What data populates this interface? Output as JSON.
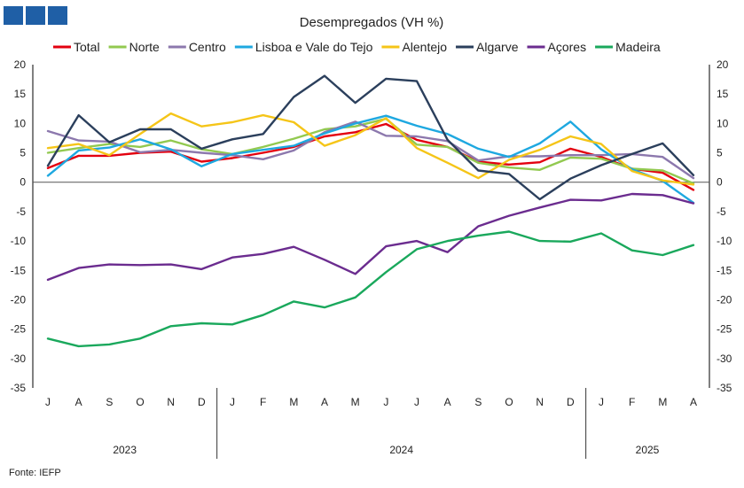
{
  "header": {
    "logo_blocks": 3,
    "logo_color": "#1f5fa6"
  },
  "footer": {
    "source": "Fonte: IEFP"
  },
  "chart_data": {
    "type": "line",
    "title": "Desempregados (VH %)",
    "ylim": [
      -35,
      20
    ],
    "yticks": [
      -35,
      -30,
      -25,
      -20,
      -15,
      -10,
      -5,
      0,
      5,
      10,
      15,
      20
    ],
    "categories": [
      "J",
      "A",
      "S",
      "O",
      "N",
      "D",
      "J",
      "F",
      "M",
      "A",
      "M",
      "J",
      "J",
      "A",
      "S",
      "O",
      "N",
      "D",
      "J",
      "F",
      "M",
      "A"
    ],
    "years": [
      {
        "label": "2023",
        "start": 0,
        "end": 5
      },
      {
        "label": "2024",
        "start": 6,
        "end": 17
      },
      {
        "label": "2025",
        "start": 18,
        "end": 21
      }
    ],
    "series": [
      {
        "name": "Total",
        "color": "#e3000f",
        "values": [
          2.4,
          4.5,
          4.5,
          5.0,
          5.2,
          3.5,
          4.1,
          5.0,
          6.0,
          7.8,
          8.5,
          9.9,
          7.2,
          6.0,
          3.5,
          3.0,
          3.4,
          5.7,
          4.3,
          2.3,
          1.6,
          -1.3
        ]
      },
      {
        "name": "Norte",
        "color": "#92c950",
        "values": [
          5.0,
          5.8,
          6.5,
          6.0,
          7.1,
          5.6,
          4.8,
          6.0,
          7.4,
          9.0,
          9.5,
          10.8,
          6.4,
          6.0,
          3.3,
          2.5,
          2.1,
          4.2,
          4.0,
          2.3,
          2.0,
          -0.2
        ]
      },
      {
        "name": "Centro",
        "color": "#8c78ad",
        "values": [
          8.7,
          7.1,
          6.9,
          5.1,
          5.5,
          5.0,
          4.6,
          3.9,
          5.4,
          8.5,
          10.3,
          7.9,
          7.8,
          7.0,
          3.7,
          4.4,
          4.4,
          4.6,
          4.6,
          4.8,
          4.3,
          0.7
        ]
      },
      {
        "name": "Lisboa e Vale do Tejo",
        "color": "#1ea8e0",
        "values": [
          1.1,
          5.4,
          5.9,
          7.3,
          5.6,
          2.7,
          4.8,
          5.5,
          6.2,
          8.3,
          10.0,
          11.3,
          9.6,
          8.2,
          5.7,
          4.3,
          6.6,
          10.3,
          5.6,
          2.2,
          0.2,
          -3.5
        ]
      },
      {
        "name": "Alentejo",
        "color": "#f5c518",
        "values": [
          5.8,
          6.5,
          4.6,
          8.2,
          11.7,
          9.5,
          10.2,
          11.4,
          10.2,
          6.2,
          8.0,
          10.9,
          5.8,
          3.3,
          0.7,
          3.8,
          5.5,
          7.8,
          6.5,
          1.9,
          0.3,
          -0.4
        ]
      },
      {
        "name": "Algarve",
        "color": "#2b3f5c",
        "values": [
          2.8,
          11.4,
          6.8,
          9.0,
          9.0,
          5.7,
          7.3,
          8.2,
          14.5,
          18.1,
          13.5,
          17.6,
          17.2,
          7.2,
          2.0,
          1.4,
          -2.9,
          0.6,
          2.9,
          4.8,
          6.6,
          1.2
        ]
      },
      {
        "name": "Açores",
        "color": "#6b2c8f",
        "values": [
          -16.6,
          -14.6,
          -14.0,
          -14.1,
          -14.0,
          -14.8,
          -12.8,
          -12.2,
          -11.0,
          -13.2,
          -15.6,
          -10.9,
          -10.0,
          -11.9,
          -7.5,
          -5.7,
          -4.3,
          -3.0,
          -3.1,
          -2.0,
          -2.2,
          -3.6
        ]
      },
      {
        "name": "Madeira",
        "color": "#1aa85c",
        "values": [
          -26.6,
          -27.9,
          -27.6,
          -26.6,
          -24.5,
          -24.0,
          -24.2,
          -22.6,
          -20.3,
          -21.3,
          -19.6,
          -15.3,
          -11.4,
          -10.0,
          -9.1,
          -8.4,
          -10.0,
          -10.1,
          -8.7,
          -11.6,
          -12.4,
          -10.7
        ]
      }
    ]
  }
}
